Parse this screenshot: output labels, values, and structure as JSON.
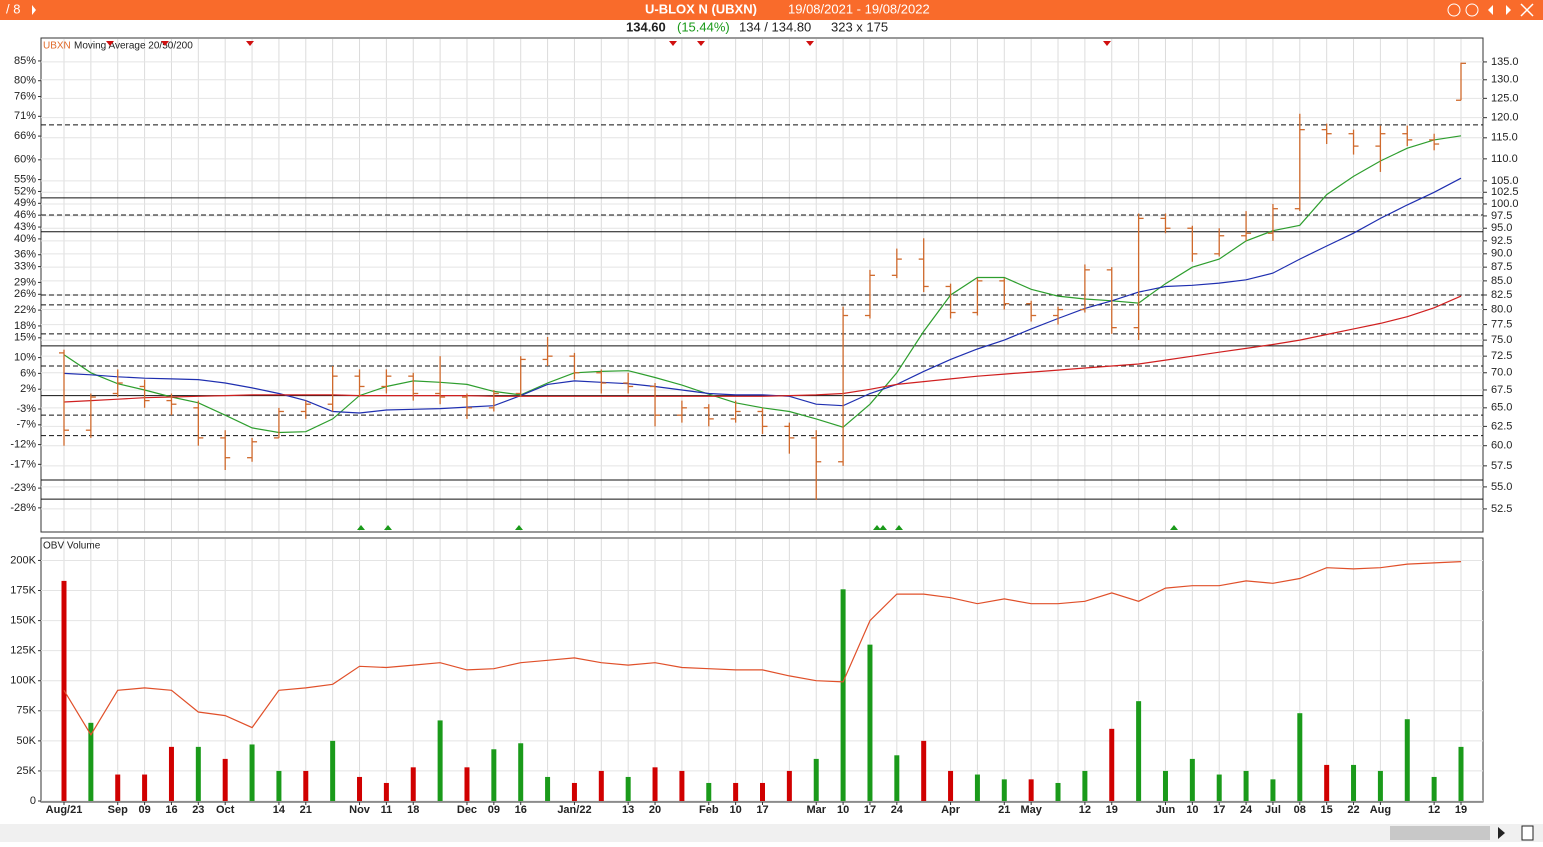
{
  "header": {
    "page": "/ 8",
    "title": "U-BLOX N (UBXN)",
    "range": "19/08/2021 - 19/08/2022",
    "last": "134.60",
    "change": "(15.44%)",
    "bidask": "134 / 134.80",
    "size": "323 x 175"
  },
  "chart_data": [
    {
      "type": "ohlc",
      "legend_symbol": "UBXN",
      "legend_text": "Moving Average 20/50/200",
      "color": "#cf6a2d",
      "categories": [
        "Aug/21",
        null,
        "Sep",
        "09",
        "16",
        "23",
        "Oct",
        null,
        "14",
        "21",
        null,
        "Nov",
        "11",
        "18",
        null,
        "Dec",
        "09",
        "16",
        null,
        "Jan/22",
        null,
        "13",
        "20",
        null,
        "Feb",
        "10",
        "17",
        null,
        "Mar",
        "10",
        "17",
        "24",
        null,
        "Apr",
        null,
        "21",
        "May",
        null,
        "12",
        "19",
        null,
        "Jun",
        "10",
        "17",
        "24",
        "Jul",
        "08",
        "15",
        "22",
        "Aug",
        null,
        "12",
        "19"
      ],
      "open": [
        73,
        62,
        67,
        68,
        66,
        65,
        61,
        58.5,
        61,
        64.5,
        65.5,
        69.5,
        68,
        69.5,
        67,
        66.5,
        65,
        67,
        72,
        72.5,
        70,
        68.5,
        68,
        64,
        65,
        63.5,
        64.5,
        62.5,
        61,
        58,
        79,
        86,
        89,
        84,
        79.5,
        85,
        81,
        79,
        80,
        87,
        77,
        97,
        95,
        90,
        93.5,
        94,
        99,
        117,
        116,
        113,
        116,
        114.5,
        124.5
      ],
      "high": [
        73.5,
        67,
        70.5,
        69,
        67,
        66,
        62,
        61,
        65,
        66,
        71,
        70.5,
        70.5,
        70,
        72.5,
        67,
        67.5,
        72.5,
        75.5,
        73,
        70.5,
        70,
        68.5,
        66,
        65.5,
        66,
        65,
        63,
        62,
        80.5,
        87,
        91,
        93,
        84.5,
        85.5,
        85.5,
        81.5,
        80.5,
        88,
        87.5,
        98,
        98,
        95.5,
        95,
        98.5,
        100,
        121,
        118.5,
        117,
        118,
        118,
        116,
        134.8
      ],
      "low": [
        60,
        61,
        66.5,
        65,
        64,
        60,
        57,
        58,
        61,
        63.5,
        64.5,
        66.5,
        67,
        66,
        65.5,
        63.5,
        64.5,
        66.5,
        71,
        69,
        67,
        67,
        62.5,
        63,
        62.5,
        63,
        61.5,
        59,
        53.5,
        57.5,
        78.5,
        85.5,
        83,
        78.5,
        79,
        80,
        78,
        77.5,
        79.5,
        76,
        75,
        94,
        88.5,
        89.5,
        92.5,
        92.5,
        98.5,
        113.5,
        111,
        107,
        113,
        112,
        124.5
      ],
      "close": [
        62,
        66.5,
        68.5,
        66,
        65.5,
        61,
        58.5,
        60.5,
        64.5,
        65.5,
        69.5,
        68,
        69.5,
        67,
        66.5,
        65,
        67,
        72,
        72.5,
        70,
        68.5,
        68,
        64,
        65,
        63.5,
        64.5,
        62.5,
        61,
        58,
        79,
        86,
        89,
        84,
        79.5,
        85,
        81,
        79,
        80,
        87,
        77,
        97,
        95,
        90,
        93.5,
        94,
        99,
        117,
        116,
        113,
        116,
        114.5,
        113.5,
        134.6
      ],
      "series": [
        {
          "color": "#2e9e2e",
          "values": [
            72.7,
            70,
            68.4,
            67.5,
            66.5,
            65.7,
            64,
            62.3,
            61.7,
            61.8,
            63.5,
            66.7,
            68,
            68.8,
            68.6,
            68.3,
            67.3,
            66.8,
            68.5,
            70,
            70.2,
            70.3,
            69.3,
            68.2,
            66.9,
            65.7,
            65,
            64.5,
            63.5,
            62.4,
            65.5,
            70,
            76.4,
            82.5,
            85.6,
            85.6,
            83.5,
            82.3,
            81.8,
            81.5,
            81.1,
            84.5,
            87.5,
            89,
            92.5,
            94.5,
            95.6,
            102,
            106,
            109.5,
            112.5,
            114.5,
            115.5
          ]
        },
        {
          "color": "#1f2fb0",
          "values": [
            69.9,
            69.7,
            69.4,
            69.2,
            69.1,
            69,
            68.5,
            67.8,
            67,
            66,
            64.5,
            64.3,
            64.7,
            64.8,
            64.9,
            65.1,
            65.3,
            66.7,
            68.3,
            68.8,
            68.6,
            68.4,
            68,
            67.5,
            67,
            66.8,
            66.8,
            66.6,
            65.5,
            65.3,
            67,
            68.3,
            70.2,
            72,
            73.6,
            75,
            76.8,
            78.5,
            80.2,
            81.5,
            83,
            84,
            84.2,
            84.6,
            85.2,
            86.4,
            89,
            91.5,
            94,
            97,
            99.8,
            102.5,
            105.6
          ]
        },
        {
          "color": "#d02020",
          "values": [
            65.8,
            66,
            66.2,
            66.4,
            66.5,
            66.6,
            66.7,
            66.8,
            66.8,
            66.8,
            66.8,
            66.7,
            66.7,
            66.7,
            66.7,
            66.7,
            66.6,
            66.6,
            66.6,
            66.6,
            66.6,
            66.6,
            66.6,
            66.6,
            66.6,
            66.6,
            66.6,
            66.7,
            66.8,
            67,
            67.6,
            68.3,
            68.7,
            69.1,
            69.5,
            69.8,
            70.1,
            70.4,
            70.7,
            71,
            71.3,
            71.9,
            72.5,
            73.1,
            73.7,
            74.3,
            75,
            75.9,
            76.8,
            77.7,
            78.8,
            80.3,
            82.3
          ]
        }
      ],
      "ylim": [
        50,
        142
      ],
      "y_log": true,
      "yticks": [
        {
          "value": 135,
          "label": "135.0"
        },
        {
          "value": 130,
          "label": "130.0"
        },
        {
          "value": 125,
          "label": "125.0"
        },
        {
          "value": 120,
          "label": "120.0"
        },
        {
          "value": 115,
          "label": "115.0"
        },
        {
          "value": 110,
          "label": "110.0"
        },
        {
          "value": 105,
          "label": "105.0"
        },
        {
          "value": 102.5,
          "label": "102.5"
        },
        {
          "value": 100,
          "label": "100.0"
        },
        {
          "value": 97.5,
          "label": "97.5"
        },
        {
          "value": 95,
          "label": "95.0"
        },
        {
          "value": 92.5,
          "label": "92.5"
        },
        {
          "value": 90,
          "label": "90.0"
        },
        {
          "value": 87.5,
          "label": "87.5"
        },
        {
          "value": 85,
          "label": "85.0"
        },
        {
          "value": 82.5,
          "label": "82.5"
        },
        {
          "value": 80,
          "label": "80.0"
        },
        {
          "value": 77.5,
          "label": "77.5"
        },
        {
          "value": 75,
          "label": "75.0"
        },
        {
          "value": 72.5,
          "label": "72.5"
        },
        {
          "value": 70,
          "label": "70.0"
        },
        {
          "value": 67.5,
          "label": "67.5"
        },
        {
          "value": 65,
          "label": "65.0"
        },
        {
          "value": 62.5,
          "label": "62.5"
        },
        {
          "value": 60,
          "label": "60.0"
        },
        {
          "value": 57.5,
          "label": "57.5"
        },
        {
          "value": 55,
          "label": "55.0"
        },
        {
          "value": 52.5,
          "label": "52.5"
        }
      ],
      "y2lim": [
        -34.1,
        90.8
      ],
      "y2ticks": [
        {
          "value": 85,
          "label": "85%"
        },
        {
          "value": 80,
          "label": "80%"
        },
        {
          "value": 76,
          "label": "76%"
        },
        {
          "value": 71,
          "label": "71%"
        },
        {
          "value": 66,
          "label": "66%"
        },
        {
          "value": 60,
          "label": "60%"
        },
        {
          "value": 55,
          "label": "55%"
        },
        {
          "value": 52,
          "label": "52%"
        },
        {
          "value": 49,
          "label": "49%"
        },
        {
          "value": 46,
          "label": "46%"
        },
        {
          "value": 43,
          "label": "43%"
        },
        {
          "value": 40,
          "label": "40%"
        },
        {
          "value": 36,
          "label": "36%"
        },
        {
          "value": 33,
          "label": "33%"
        },
        {
          "value": 29,
          "label": "29%"
        },
        {
          "value": 26,
          "label": "26%"
        },
        {
          "value": 22,
          "label": "22%"
        },
        {
          "value": 18,
          "label": "18%"
        },
        {
          "value": 15,
          "label": "15%"
        },
        {
          "value": 10,
          "label": "10%"
        },
        {
          "value": 6,
          "label": "6%"
        },
        {
          "value": 2,
          "label": "2%"
        },
        {
          "value": -3,
          "label": "-3%"
        },
        {
          "value": -7,
          "label": "-7%"
        },
        {
          "value": -12,
          "label": "-12%"
        },
        {
          "value": -17,
          "label": "-17%"
        },
        {
          "value": -23,
          "label": "-23%"
        },
        {
          "value": -28,
          "label": "-28%"
        }
      ],
      "levels": [
        {
          "value": 118.2,
          "style": "dashed"
        },
        {
          "value": 101.3,
          "style": "solid"
        },
        {
          "value": 97.7,
          "style": "dashed"
        },
        {
          "value": 94.3,
          "style": "solid"
        },
        {
          "value": 82.5,
          "style": "dashed"
        },
        {
          "value": 80.8,
          "style": "dashed"
        },
        {
          "value": 76,
          "style": "dashed"
        },
        {
          "value": 74.1,
          "style": "solid"
        },
        {
          "value": 71,
          "style": "dashed"
        },
        {
          "value": 66.7,
          "style": "solid"
        },
        {
          "value": 64,
          "style": "dashed"
        },
        {
          "value": 61.3,
          "style": "dashed"
        },
        {
          "value": 55.8,
          "style": "solid"
        },
        {
          "value": 53.6,
          "style": "solid"
        }
      ],
      "grid": true
    },
    {
      "type": "bar",
      "title": "OBV Volume",
      "values": [
        183000,
        65000,
        22000,
        22000,
        45000,
        45000,
        35000,
        47000,
        25000,
        25000,
        50000,
        20000,
        15000,
        28000,
        67000,
        28000,
        43000,
        48000,
        20000,
        15000,
        25000,
        20000,
        28000,
        25000,
        15000,
        15000,
        15000,
        25000,
        35000,
        176000,
        130000,
        38000,
        50000,
        25000,
        22000,
        18000,
        18000,
        15000,
        25000,
        60000,
        83000,
        25000,
        35000,
        22000,
        25000,
        18000,
        73000,
        30000,
        30000,
        25000,
        68000,
        20000,
        45000
      ],
      "colors": [
        "#d00000",
        "#1a9a1a",
        "#d00000",
        "#d00000",
        "#d00000",
        "#1a9a1a",
        "#d00000",
        "#1a9a1a",
        "#1a9a1a",
        "#d00000",
        "#1a9a1a",
        "#d00000",
        "#d00000",
        "#d00000",
        "#1a9a1a",
        "#d00000",
        "#1a9a1a",
        "#1a9a1a",
        "#1a9a1a",
        "#d00000",
        "#d00000",
        "#1a9a1a",
        "#d00000",
        "#d00000",
        "#1a9a1a",
        "#d00000",
        "#d00000",
        "#d00000",
        "#1a9a1a",
        "#1a9a1a",
        "#1a9a1a",
        "#1a9a1a",
        "#d00000",
        "#d00000",
        "#1a9a1a",
        "#1a9a1a",
        "#d00000",
        "#1a9a1a",
        "#1a9a1a",
        "#d00000",
        "#1a9a1a",
        "#1a9a1a",
        "#1a9a1a",
        "#1a9a1a",
        "#1a9a1a",
        "#1a9a1a",
        "#1a9a1a",
        "#d00000",
        "#1a9a1a",
        "#1a9a1a",
        "#1a9a1a",
        "#1a9a1a",
        "#1a9a1a"
      ],
      "obv": {
        "color": "#e0502a",
        "values": [
          92000,
          55000,
          92000,
          94000,
          92000,
          74000,
          71000,
          61000,
          92000,
          94000,
          97000,
          112000,
          111000,
          113000,
          115000,
          109000,
          110000,
          115000,
          117000,
          119000,
          115000,
          113000,
          115000,
          111000,
          110000,
          109000,
          109000,
          104000,
          100000,
          99000,
          150000,
          172000,
          172000,
          169000,
          164000,
          168000,
          164000,
          164000,
          166000,
          173000,
          166000,
          177000,
          179000,
          179000,
          183000,
          181000,
          185000,
          194000,
          193000,
          194000,
          197000,
          198000,
          199000
        ]
      },
      "ylim": [
        0,
        217000
      ],
      "yticks": [
        0,
        {
          "value": 25000,
          "label": "25K"
        },
        {
          "value": 50000,
          "label": "50K"
        },
        {
          "value": 75000,
          "label": "75K"
        },
        {
          "value": 100000,
          "label": "100K"
        },
        {
          "value": 125000,
          "label": "125K"
        },
        {
          "value": 150000,
          "label": "150K"
        },
        {
          "value": 175000,
          "label": "175K"
        },
        {
          "value": 200000,
          "label": "200K"
        }
      ],
      "grid": true
    }
  ]
}
